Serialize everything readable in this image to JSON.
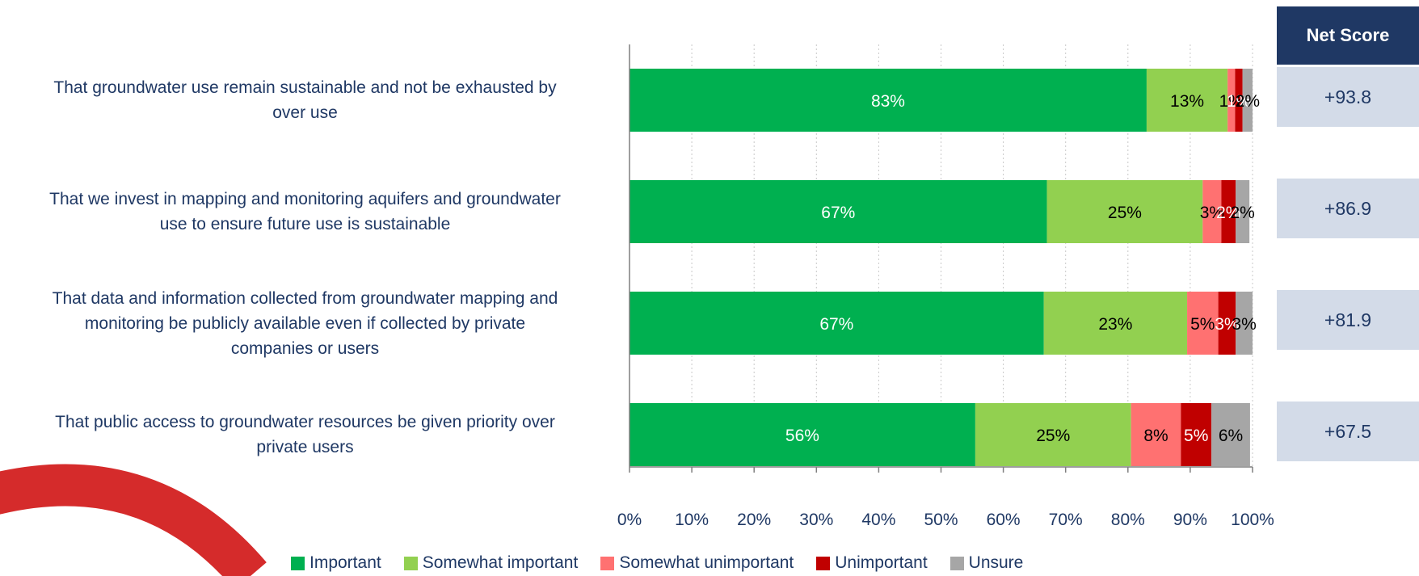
{
  "chart_data": {
    "type": "bar",
    "orientation": "horizontal",
    "stacked": true,
    "categories": [
      "That groundwater use remain sustainable and not be exhausted by over use",
      "That we invest in mapping and monitoring aquifers and groundwater use to ensure future use is sustainable",
      "That data and information collected from groundwater mapping and monitoring be publicly available even if collected by private companies or users",
      "That public access to groundwater resources be given priority over private users"
    ],
    "category_lines": [
      [
        "That groundwater use remain sustainable and not be exhausted by",
        "over use"
      ],
      [
        "That we invest in mapping and monitoring aquifers and groundwater",
        "use to ensure future use is sustainable"
      ],
      [
        "That data and information collected from groundwater mapping and",
        "monitoring be publicly available even if collected by private",
        "companies or users"
      ],
      [
        "That public access to groundwater resources be given priority over",
        "private users"
      ]
    ],
    "series": [
      {
        "name": "Important",
        "color": "#00b050",
        "label_color": "#ffffff",
        "values": [
          83,
          67,
          66.5,
          55.5
        ],
        "labels": [
          "83%",
          "67%",
          "67%",
          "56%"
        ]
      },
      {
        "name": "Somewhat important",
        "color": "#92d050",
        "label_color": "#000000",
        "values": [
          13,
          25,
          23,
          25
        ],
        "labels": [
          "13%",
          "25%",
          "23%",
          "25%"
        ]
      },
      {
        "name": "Somewhat unimportant",
        "color": "#ff7171",
        "label_color": "#000000",
        "values": [
          1.2,
          3,
          5,
          8
        ],
        "labels": [
          "1%",
          "3%",
          "5%",
          "8%"
        ]
      },
      {
        "name": "Unimportant",
        "color": "#c00000",
        "label_color": "#ffffff",
        "values": [
          1.2,
          2.3,
          2.8,
          4.9
        ],
        "labels": [
          "1%",
          "2%",
          "3%",
          "5%"
        ]
      },
      {
        "name": "Unsure",
        "color": "#a6a6a6",
        "label_color": "#000000",
        "values": [
          1.6,
          2.2,
          2.7,
          6.2
        ],
        "labels": [
          "2%",
          "2%",
          "3%",
          "6%"
        ]
      }
    ],
    "xlim": [
      0,
      100
    ],
    "x_ticks": [
      "0%",
      "10%",
      "20%",
      "30%",
      "40%",
      "50%",
      "60%",
      "70%",
      "80%",
      "90%",
      "100%"
    ],
    "grid": true,
    "legend_position": "bottom"
  },
  "net_score": {
    "header": "Net Score",
    "values": [
      "+93.8",
      "+86.9",
      "+81.9",
      "+67.5"
    ]
  },
  "colors": {
    "header_bg": "#1f3864",
    "cell_bg": "#d3dbe8",
    "decoration": "#d52b2b"
  }
}
